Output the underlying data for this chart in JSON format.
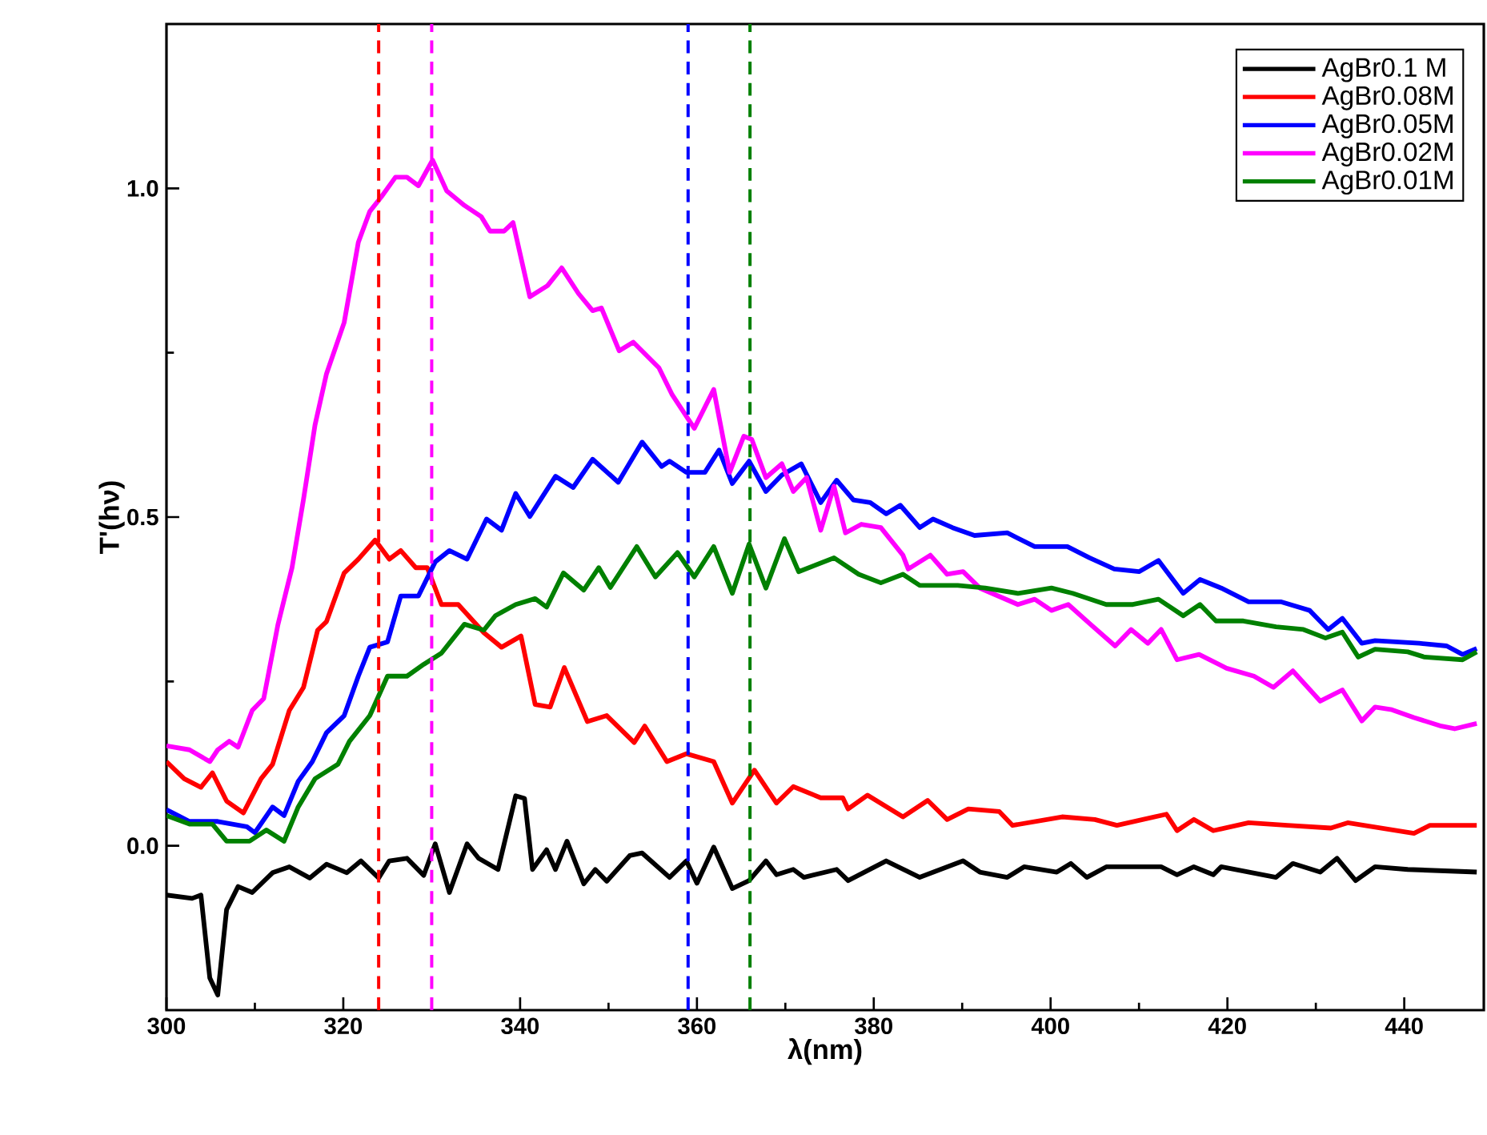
{
  "chart_data": {
    "type": "line",
    "xlabel": "λ(nm)",
    "ylabel": "T'(hν)",
    "xlim": [
      300,
      449
    ],
    "ylim": [
      -0.25,
      1.25
    ],
    "xticks": [
      300,
      320,
      340,
      360,
      380,
      400,
      420,
      440
    ],
    "yticks": [
      {
        "value": 0,
        "label": "0.0"
      },
      {
        "value": 0.5,
        "label": "0.5"
      },
      {
        "value": 1,
        "label": "1.0"
      }
    ],
    "legend": "top right",
    "ref_lines": [
      {
        "axis": "x",
        "value": 324,
        "color": "#ff0000",
        "line_style": "dashed"
      },
      {
        "axis": "x",
        "value": 330,
        "color": "#ff00ff",
        "line_style": "dashed"
      },
      {
        "axis": "x",
        "value": 359,
        "color": "#0000ff",
        "line_style": "dashed"
      },
      {
        "axis": "x",
        "value": 366,
        "color": "#008000",
        "line_style": "dashed"
      }
    ],
    "series": [
      {
        "name": "AgBr0.1  M",
        "color": "#000000",
        "x": [
          300,
          302.9,
          303.9,
          304.9,
          305.8,
          306.8,
          308.1,
          309.7,
          312,
          313.9,
          316.2,
          318.1,
          320.4,
          322,
          324,
          325.2,
          327.2,
          329.1,
          330.4,
          332,
          334,
          335.3,
          337.5,
          339.5,
          340.5,
          341.4,
          343,
          344,
          345.3,
          347.2,
          348.5,
          349.8,
          352.4,
          353.8,
          356.9,
          358.8,
          360,
          361.9,
          364,
          365.9,
          367.8,
          369,
          370.9,
          372.1,
          375.8,
          377.1,
          381.4,
          385.2,
          390.1,
          392,
          395.1,
          397,
          400.7,
          402.3,
          404.1,
          406.3,
          412.5,
          414.3,
          416.2,
          418.4,
          419.3,
          425.5,
          427.4,
          430.5,
          432.4,
          434.5,
          436.7,
          440.4,
          448.2
        ],
        "values": [
          -0.075,
          -0.08,
          -0.075,
          -0.201,
          -0.227,
          -0.097,
          -0.062,
          -0.071,
          -0.041,
          -0.032,
          -0.049,
          -0.028,
          -0.041,
          -0.023,
          -0.049,
          -0.023,
          -0.019,
          -0.045,
          0.003,
          -0.071,
          0.003,
          -0.019,
          -0.036,
          0.076,
          0.072,
          -0.036,
          -0.006,
          -0.036,
          0.007,
          -0.058,
          -0.036,
          -0.054,
          -0.015,
          -0.011,
          -0.048,
          -0.023,
          -0.057,
          -0.002,
          -0.065,
          -0.053,
          -0.023,
          -0.044,
          -0.036,
          -0.048,
          -0.036,
          -0.053,
          -0.023,
          -0.048,
          -0.023,
          -0.04,
          -0.048,
          -0.032,
          -0.04,
          -0.027,
          -0.048,
          -0.032,
          -0.032,
          -0.044,
          -0.032,
          -0.044,
          -0.032,
          -0.048,
          -0.027,
          -0.04,
          -0.019,
          -0.053,
          -0.032,
          -0.036,
          -0.04
        ]
      },
      {
        "name": "AgBr0.08M",
        "color": "#ff0000",
        "x": [
          300,
          302,
          303.9,
          305.2,
          306.8,
          308.7,
          310.7,
          312,
          313.9,
          315.5,
          317.1,
          318.1,
          320.1,
          321.7,
          323.6,
          325.2,
          326.5,
          328.2,
          329.5,
          331.1,
          333,
          335.9,
          337.9,
          340.1,
          341.7,
          343.4,
          345,
          347.6,
          349.8,
          352.9,
          354.1,
          356.6,
          358.8,
          361.9,
          364,
          366.5,
          369,
          370.9,
          374,
          376.5,
          377.1,
          379.3,
          383.3,
          386.1,
          388.3,
          390.7,
          394.2,
          395.7,
          401.3,
          405,
          407.5,
          413.1,
          414.3,
          416.2,
          418.4,
          422.4,
          426.8,
          431.7,
          433.6,
          441.1,
          442.9,
          448.2
        ],
        "values": [
          0.128,
          0.102,
          0.089,
          0.111,
          0.068,
          0.05,
          0.102,
          0.124,
          0.206,
          0.241,
          0.328,
          0.341,
          0.415,
          0.436,
          0.465,
          0.436,
          0.449,
          0.423,
          0.423,
          0.367,
          0.367,
          0.324,
          0.302,
          0.319,
          0.215,
          0.211,
          0.271,
          0.189,
          0.198,
          0.157,
          0.182,
          0.128,
          0.14,
          0.128,
          0.065,
          0.115,
          0.065,
          0.09,
          0.073,
          0.073,
          0.056,
          0.077,
          0.044,
          0.069,
          0.04,
          0.056,
          0.052,
          0.031,
          0.044,
          0.04,
          0.031,
          0.048,
          0.023,
          0.04,
          0.023,
          0.035,
          0.031,
          0.027,
          0.035,
          0.019,
          0.031,
          0.031
        ]
      },
      {
        "name": "AgBr0.05M",
        "color": "#0000ff",
        "x": [
          300,
          302.6,
          305.8,
          309.1,
          310,
          312,
          313.3,
          314.9,
          316.5,
          318.1,
          320.1,
          321.7,
          323,
          325,
          326.5,
          328.5,
          330.4,
          332,
          334,
          336.2,
          337.9,
          339.5,
          341.1,
          344,
          346,
          348.2,
          351.1,
          353.8,
          356,
          356.9,
          358.8,
          360.9,
          362.5,
          364,
          365.9,
          367.8,
          369.6,
          371.8,
          374,
          375.8,
          377.7,
          379.6,
          381.4,
          383,
          385.2,
          386.7,
          388.9,
          391.4,
          395.1,
          398.2,
          401.9,
          404.4,
          407.2,
          410,
          412.2,
          415,
          416.9,
          419.3,
          422.4,
          426.1,
          429.3,
          431.4,
          433,
          435.2,
          436.7,
          441.7,
          444.8,
          446.6,
          448.2
        ],
        "values": [
          0.055,
          0.037,
          0.037,
          0.029,
          0.02,
          0.059,
          0.046,
          0.098,
          0.128,
          0.172,
          0.198,
          0.258,
          0.302,
          0.31,
          0.38,
          0.38,
          0.432,
          0.449,
          0.436,
          0.497,
          0.48,
          0.536,
          0.501,
          0.562,
          0.545,
          0.588,
          0.553,
          0.614,
          0.577,
          0.585,
          0.568,
          0.568,
          0.602,
          0.551,
          0.585,
          0.539,
          0.564,
          0.581,
          0.522,
          0.556,
          0.526,
          0.522,
          0.505,
          0.518,
          0.484,
          0.497,
          0.484,
          0.472,
          0.476,
          0.455,
          0.455,
          0.438,
          0.421,
          0.417,
          0.434,
          0.384,
          0.405,
          0.392,
          0.371,
          0.371,
          0.358,
          0.329,
          0.346,
          0.308,
          0.312,
          0.308,
          0.304,
          0.291,
          0.3
        ]
      },
      {
        "name": "AgBr0.02M",
        "color": "#ff00ff",
        "x": [
          300,
          302.6,
          304.9,
          305.8,
          307.1,
          308.1,
          309.7,
          311,
          312.6,
          314.2,
          315.5,
          316.8,
          318.1,
          320.1,
          321.7,
          323,
          324.3,
          325.9,
          327.2,
          328.5,
          330.1,
          331.7,
          333.7,
          335.6,
          336.6,
          338.2,
          339.2,
          341.1,
          343.1,
          344.7,
          346.6,
          348.2,
          349.2,
          351.2,
          352.8,
          355.7,
          357.2,
          359.7,
          361.9,
          363.7,
          365.3,
          366.2,
          367.8,
          369.6,
          370.9,
          372.4,
          374,
          375.5,
          376.8,
          378.6,
          380.8,
          383.3,
          383.9,
          386.4,
          388.3,
          390.1,
          392,
          396.3,
          398.2,
          400.1,
          402,
          404.5,
          407.3,
          409.1,
          411,
          412.5,
          414.3,
          416.8,
          419.9,
          423,
          425.2,
          427.4,
          430.5,
          433,
          435.2,
          436.7,
          438.6,
          441.1,
          444.2,
          445.7,
          448.2
        ],
        "values": [
          0.152,
          0.146,
          0.128,
          0.146,
          0.159,
          0.15,
          0.206,
          0.224,
          0.336,
          0.423,
          0.527,
          0.64,
          0.718,
          0.796,
          0.918,
          0.965,
          0.987,
          1.017,
          1.017,
          1.004,
          1.043,
          0.996,
          0.974,
          0.957,
          0.935,
          0.935,
          0.948,
          0.835,
          0.852,
          0.879,
          0.84,
          0.814,
          0.818,
          0.753,
          0.766,
          0.727,
          0.686,
          0.635,
          0.694,
          0.568,
          0.623,
          0.618,
          0.56,
          0.581,
          0.539,
          0.56,
          0.48,
          0.547,
          0.476,
          0.489,
          0.484,
          0.442,
          0.421,
          0.442,
          0.413,
          0.417,
          0.392,
          0.367,
          0.375,
          0.358,
          0.367,
          0.337,
          0.304,
          0.329,
          0.308,
          0.329,
          0.283,
          0.291,
          0.27,
          0.258,
          0.241,
          0.266,
          0.22,
          0.237,
          0.19,
          0.211,
          0.207,
          0.195,
          0.182,
          0.178,
          0.186
        ]
      },
      {
        "name": "AgBr0.01M",
        "color": "#008000",
        "x": [
          300,
          302.6,
          305.2,
          306.8,
          309.4,
          311.3,
          313.3,
          314.9,
          316.8,
          319.4,
          320.7,
          323,
          325,
          327.2,
          329.1,
          331.1,
          333.7,
          335.9,
          337.2,
          339.5,
          341.7,
          343,
          344.9,
          347.2,
          348.9,
          350.2,
          353.2,
          355.3,
          357.8,
          359.7,
          361.9,
          364,
          365.9,
          367.8,
          369.9,
          371.5,
          375.5,
          378.3,
          380.8,
          383.3,
          385.2,
          389.5,
          392.6,
          396.3,
          400.1,
          402.5,
          406.3,
          409.3,
          412.2,
          415,
          416.9,
          418.7,
          421.8,
          425.5,
          428.6,
          431.1,
          433,
          434.8,
          436.7,
          440.4,
          442.3,
          446.6,
          448.2
        ],
        "values": [
          0.046,
          0.033,
          0.033,
          0.007,
          0.007,
          0.024,
          0.007,
          0.059,
          0.102,
          0.124,
          0.159,
          0.198,
          0.258,
          0.258,
          0.276,
          0.293,
          0.337,
          0.328,
          0.35,
          0.367,
          0.376,
          0.363,
          0.415,
          0.389,
          0.423,
          0.393,
          0.455,
          0.409,
          0.446,
          0.409,
          0.455,
          0.384,
          0.459,
          0.392,
          0.467,
          0.417,
          0.438,
          0.413,
          0.4,
          0.413,
          0.396,
          0.396,
          0.392,
          0.384,
          0.392,
          0.384,
          0.367,
          0.367,
          0.375,
          0.35,
          0.367,
          0.342,
          0.342,
          0.333,
          0.329,
          0.316,
          0.325,
          0.287,
          0.299,
          0.295,
          0.287,
          0.283,
          0.295
        ]
      }
    ]
  }
}
